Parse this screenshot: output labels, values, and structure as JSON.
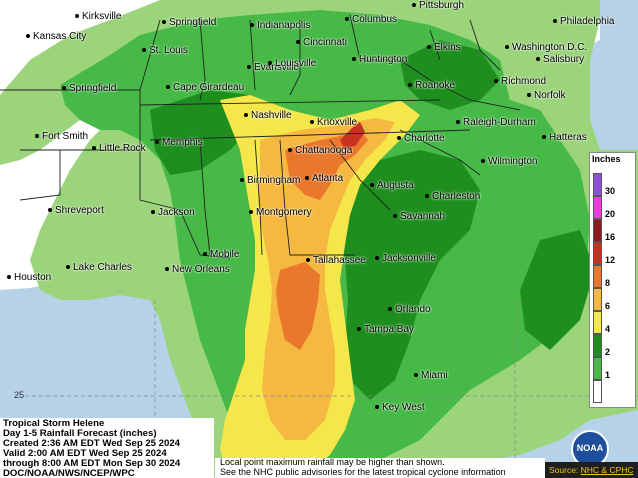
{
  "title_block": {
    "line1": "Tropical Storm Helene",
    "line2": "Day 1-5 Rainfall Forecast (inches)",
    "line3": "Created 2:36 AM EDT Wed Sep 25 2024",
    "line4": "Valid 2:00 AM EDT Wed Sep 25 2024",
    "line5": "through 8:00 AM EDT Mon Sep 30 2024",
    "line6": "DOC/NOAA/NWS/NCEP/WPC"
  },
  "notes": {
    "line1": "Local point maximum rainfall may be higher than shown.",
    "line2": "See the NHC public advisories for the latest tropical cyclone information"
  },
  "legend": {
    "title": "Inches",
    "ticks": [
      "30",
      "20",
      "16",
      "12",
      "8",
      "6",
      "4",
      "2",
      "1"
    ],
    "colors": [
      "#ffffff",
      "#9bd47a",
      "#46b946",
      "#1e8f1e",
      "#f5e64a",
      "#f5b942",
      "#e9772c",
      "#c8321e",
      "#8b1a1a",
      "#e83ee0",
      "#8e4fd6"
    ]
  },
  "latitude_label": "25",
  "source": {
    "prefix": "Source: ",
    "link": "NHC & CPHC"
  },
  "logo": {
    "text": "NOAA"
  },
  "colors": {
    "ocean": "#b6d2e8",
    "land": "#ffffff",
    "green_light": "#9bd47a",
    "green": "#46b946",
    "green_dark": "#1e8f1e",
    "yellow": "#f5e64a",
    "orange_light": "#f5b942",
    "orange": "#e9772c",
    "red": "#c8321e"
  },
  "cities": [
    {
      "name": "Kirksville"
    },
    {
      "name": "Kansas City"
    },
    {
      "name": "Springfield"
    },
    {
      "name": "Indianapolis"
    },
    {
      "name": "Columbus"
    },
    {
      "name": "Pittsburgh"
    },
    {
      "name": "Philadelphia"
    },
    {
      "name": "Cincinnati"
    },
    {
      "name": "St. Louis"
    },
    {
      "name": "Elkins"
    },
    {
      "name": "Washington D.C."
    },
    {
      "name": "Salisbury"
    },
    {
      "name": "Evansville"
    },
    {
      "name": "Louisville"
    },
    {
      "name": "Huntington"
    },
    {
      "name": "Springfield"
    },
    {
      "name": "Cape Girardeau"
    },
    {
      "name": "Roanoke"
    },
    {
      "name": "Richmond"
    },
    {
      "name": "Norfolk"
    },
    {
      "name": "Nashville"
    },
    {
      "name": "Knoxville"
    },
    {
      "name": "Raleigh-Durham"
    },
    {
      "name": "Fort Smith"
    },
    {
      "name": "Memphis"
    },
    {
      "name": "Little Rock"
    },
    {
      "name": "Charlotte"
    },
    {
      "name": "Hatteras"
    },
    {
      "name": "Chattanooga"
    },
    {
      "name": "Wilmington"
    },
    {
      "name": "Atlanta"
    },
    {
      "name": "Birmingham"
    },
    {
      "name": "Augusta"
    },
    {
      "name": "Charleston"
    },
    {
      "name": "Shreveport"
    },
    {
      "name": "Jackson"
    },
    {
      "name": "Montgomery"
    },
    {
      "name": "Savannah"
    },
    {
      "name": "Mobile"
    },
    {
      "name": "Tallahassee"
    },
    {
      "name": "Jacksonville"
    },
    {
      "name": "Houston"
    },
    {
      "name": "Lake Charles"
    },
    {
      "name": "New Orleans"
    },
    {
      "name": "Orlando"
    },
    {
      "name": "Tampa Bay"
    },
    {
      "name": "Miami"
    },
    {
      "name": "Key West"
    }
  ]
}
